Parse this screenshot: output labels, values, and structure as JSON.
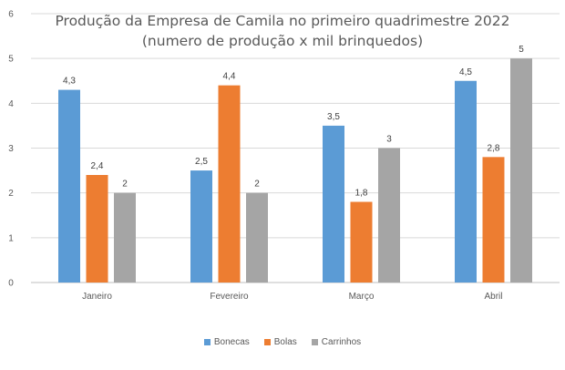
{
  "chart_data": {
    "type": "bar",
    "title_line1": "Produção da Empresa de Camila no primeiro quadrimestre 2022",
    "title_line2": "(numero de produção x mil brinquedos)",
    "xlabel": "",
    "ylabel": "",
    "categories": [
      "Janeiro",
      "Fevereiro",
      "Março",
      "Abril"
    ],
    "y_ticks": [
      "0",
      "1",
      "2",
      "3",
      "4",
      "5",
      "6"
    ],
    "ylim": [
      0,
      6
    ],
    "grid": true,
    "legend_position": "bottom",
    "series": [
      {
        "name": "Bonecas",
        "color": "#5b9bd5",
        "values": [
          4.3,
          2.5,
          3.5,
          4.5
        ],
        "labels": [
          "4,3",
          "2,5",
          "3,5",
          "4,5"
        ]
      },
      {
        "name": "Bolas",
        "color": "#ed7d31",
        "values": [
          2.4,
          4.4,
          1.8,
          2.8
        ],
        "labels": [
          "2,4",
          "4,4",
          "1,8",
          "2,8"
        ]
      },
      {
        "name": "Carrinhos",
        "color": "#a5a5a5",
        "values": [
          2,
          2,
          3,
          5
        ],
        "labels": [
          "2",
          "2",
          "3",
          "5"
        ]
      }
    ]
  }
}
